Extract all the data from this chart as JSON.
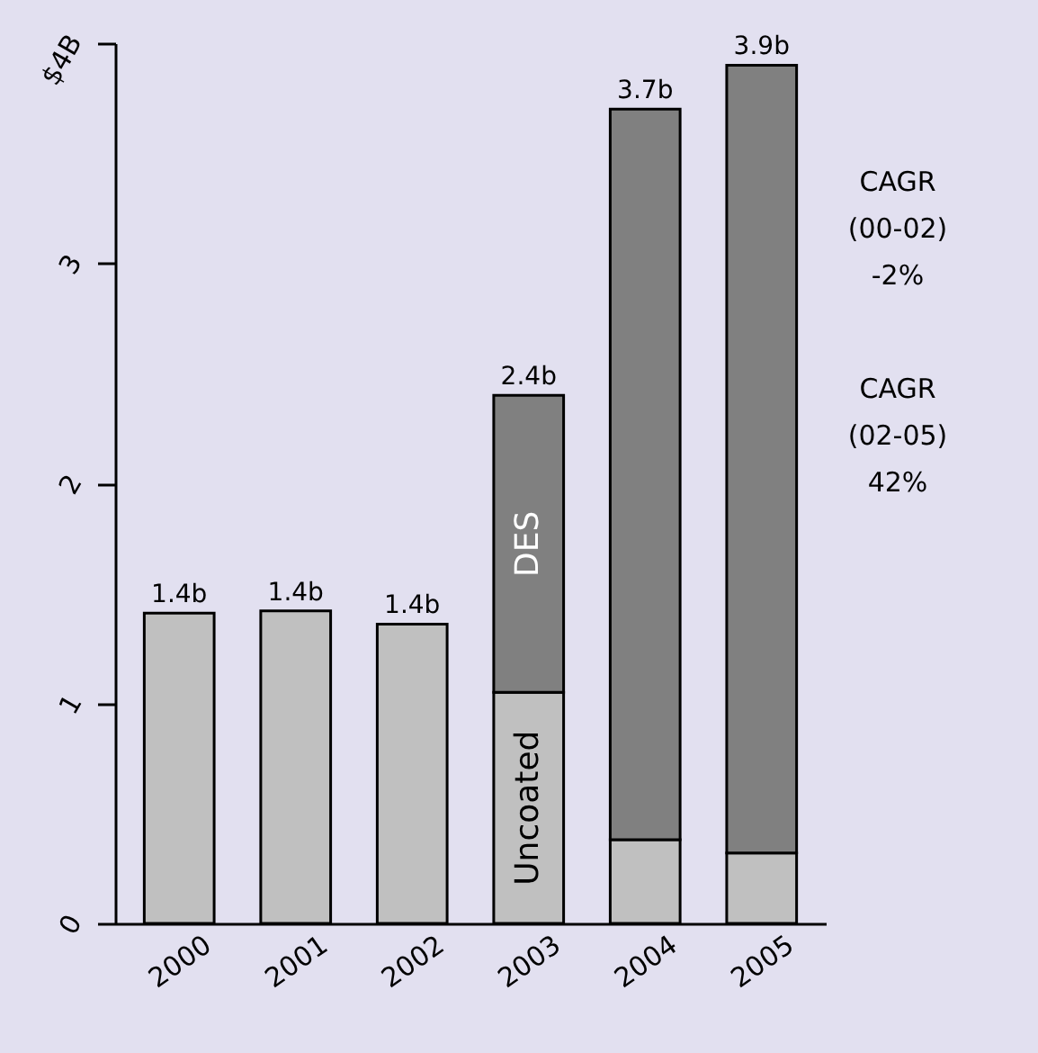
{
  "chart_data": {
    "type": "bar",
    "stacked": true,
    "categories": [
      "2000",
      "2001",
      "2002",
      "2003",
      "2004",
      "2005"
    ],
    "series": [
      {
        "name": "Uncoated",
        "color": "#c0c0c0",
        "values": [
          1.41,
          1.42,
          1.36,
          1.05,
          0.38,
          0.32
        ]
      },
      {
        "name": "DES",
        "color": "#808080",
        "values": [
          null,
          null,
          null,
          1.35,
          3.32,
          3.58
        ]
      }
    ],
    "totals": [
      "1.4b",
      "1.4b",
      "1.4b",
      "2.4b",
      "3.7b",
      "3.9b"
    ],
    "ylim": [
      0,
      4
    ],
    "yticks": [
      0,
      1,
      2,
      3,
      {
        "value": 4,
        "label": "$4B"
      }
    ],
    "grid": false,
    "legend": false,
    "annotations": [
      "CAGR\n(00-02)\n-2%",
      "CAGR\n(02-05)\n42%"
    ]
  }
}
